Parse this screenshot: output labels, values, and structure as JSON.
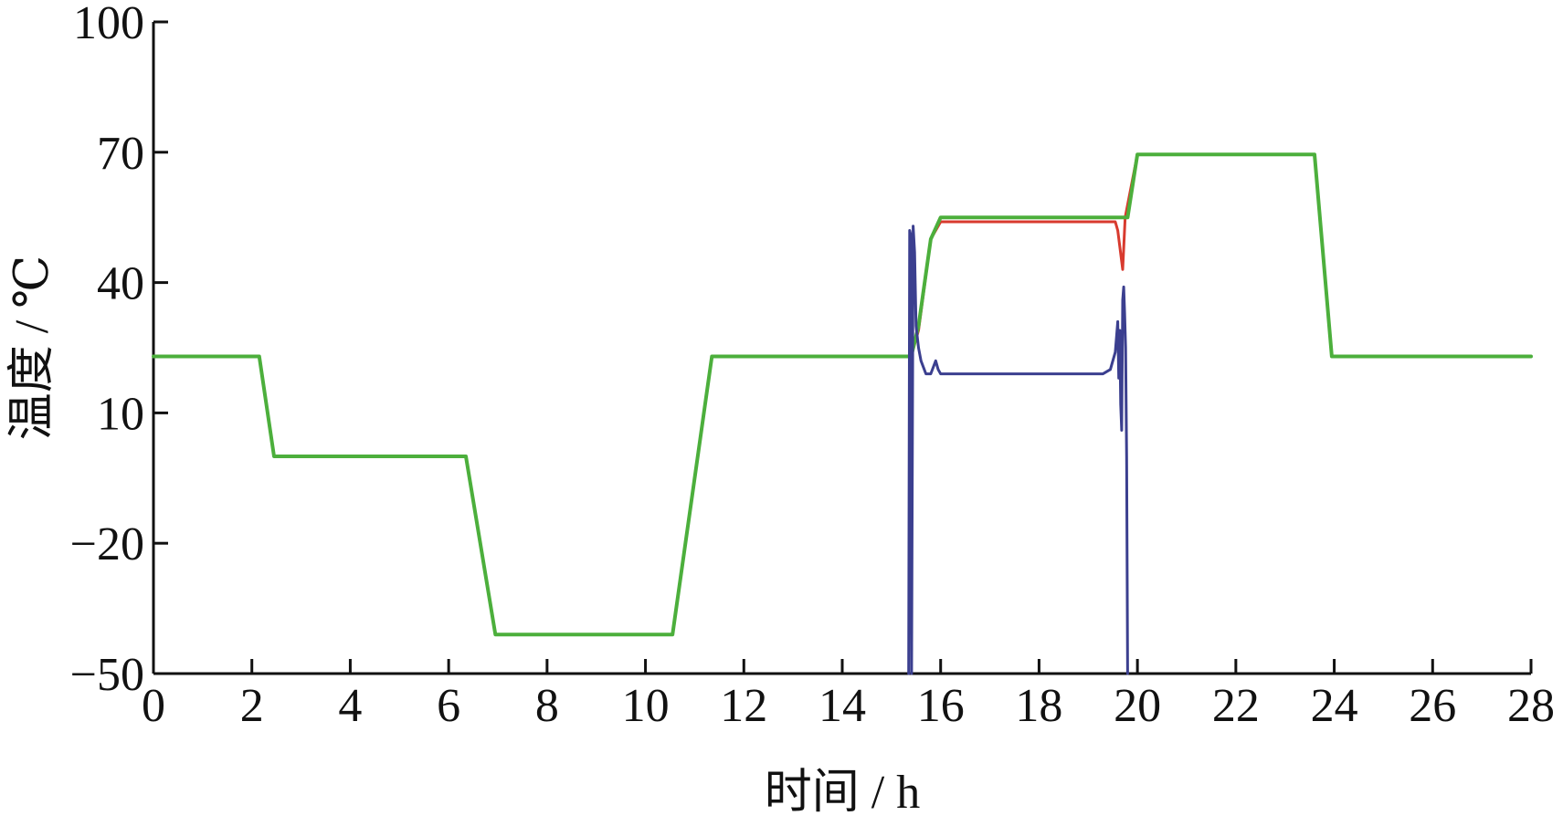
{
  "chart_data": {
    "type": "line",
    "xlabel": "时间 / h",
    "ylabel": "温度 / ℃",
    "xlim": [
      0,
      28
    ],
    "ylim": [
      -50,
      100
    ],
    "xticks": [
      0,
      2,
      4,
      6,
      8,
      10,
      12,
      14,
      16,
      18,
      20,
      22,
      24,
      26,
      28
    ],
    "yticks": [
      -50,
      -20,
      10,
      40,
      70,
      100
    ],
    "ytick_labels": [
      "−50",
      "−20",
      "10",
      "40",
      "70",
      "100"
    ],
    "grid": false,
    "series": [
      {
        "color": "#d83a2e",
        "width": 3,
        "x": [
          0,
          2.15,
          2.45,
          6.35,
          6.95,
          10.55,
          11.35,
          15.4,
          15.55,
          15.8,
          16.0,
          19.55,
          19.6,
          19.7,
          19.75,
          20.0,
          23.6,
          23.95,
          28
        ],
        "y": [
          23,
          23,
          0,
          0,
          -41,
          -41,
          23,
          23,
          29,
          50,
          54,
          54,
          52,
          43,
          55,
          69.5,
          69.5,
          23,
          23
        ]
      },
      {
        "color": "#4caf3c",
        "width": 4,
        "x": [
          0,
          2.15,
          2.45,
          6.35,
          6.95,
          10.55,
          11.35,
          15.4,
          15.55,
          15.8,
          16.0,
          19.8,
          20.0,
          23.6,
          23.95,
          28
        ],
        "y": [
          23,
          23,
          0,
          0,
          -41,
          -41,
          23,
          23,
          30,
          50,
          55,
          55,
          69.5,
          69.5,
          23,
          23
        ]
      },
      {
        "color": "#3b3f8f",
        "width": 3,
        "x": [
          15.35,
          15.37,
          15.39,
          15.41,
          15.44,
          15.47,
          15.5,
          15.55,
          15.6,
          15.7,
          15.8,
          15.9,
          15.95,
          16.0,
          16.1,
          16.5,
          17.0,
          18.0,
          19.0,
          19.3,
          19.45,
          19.55,
          19.6,
          19.62,
          19.64,
          19.66,
          19.68,
          19.7,
          19.72,
          19.74,
          19.76,
          19.78,
          19.8
        ],
        "y": [
          -50,
          52,
          51,
          -50,
          53,
          47,
          30,
          25,
          22,
          19,
          19,
          22,
          20,
          19,
          19,
          19,
          19,
          19,
          19,
          19,
          20,
          24,
          31,
          18,
          29,
          12,
          6,
          36,
          39,
          33,
          25,
          0,
          -50
        ]
      }
    ]
  }
}
